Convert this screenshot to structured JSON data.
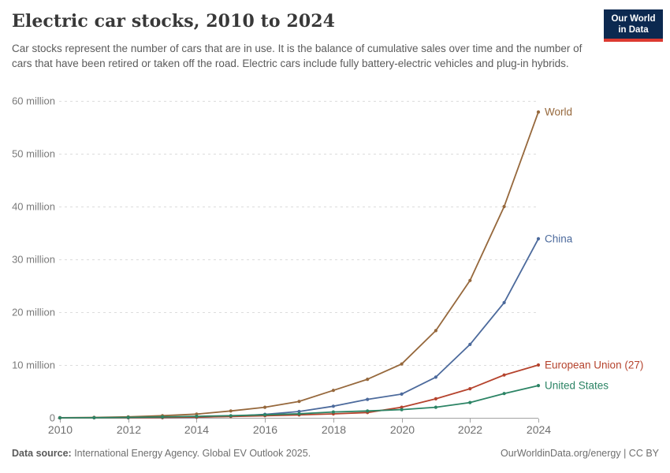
{
  "header": {
    "title": "Electric car stocks, 2010 to 2024",
    "subtitle": "Car stocks represent the number of cars that are in use. It is the balance of cumulative sales over time and the number of cars that have been retired or taken off the road. Electric cars include fully battery-electric vehicles and plug-in hybrids.",
    "logo": {
      "line1": "Our World",
      "line2": "in Data",
      "bg_color": "#0c2950",
      "accent_color": "#dc3a31"
    }
  },
  "chart_data": {
    "type": "line",
    "title": "Electric car stocks, 2010 to 2024",
    "xlabel": "",
    "ylabel": "",
    "unit": "million cars",
    "x": [
      2010,
      2011,
      2012,
      2013,
      2014,
      2015,
      2016,
      2017,
      2018,
      2019,
      2020,
      2021,
      2022,
      2023,
      2024
    ],
    "series": [
      {
        "name": "World",
        "color": "#96683c",
        "values": [
          0.02,
          0.07,
          0.18,
          0.4,
          0.7,
          1.3,
          2.0,
          3.1,
          5.2,
          7.3,
          10.2,
          16.5,
          26.0,
          40.0,
          57.9
        ]
      },
      {
        "name": "China",
        "color": "#4c6a9c",
        "values": [
          0.0,
          0.01,
          0.02,
          0.03,
          0.1,
          0.3,
          0.65,
          1.2,
          2.2,
          3.5,
          4.5,
          7.7,
          13.9,
          21.8,
          33.9
        ]
      },
      {
        "name": "European Union (27)",
        "color": "#b5432d",
        "values": [
          0.0,
          0.01,
          0.03,
          0.06,
          0.13,
          0.25,
          0.4,
          0.55,
          0.75,
          1.0,
          2.0,
          3.6,
          5.5,
          8.1,
          10.0
        ]
      },
      {
        "name": "United States",
        "color": "#2c8465",
        "values": [
          0.0,
          0.02,
          0.07,
          0.17,
          0.29,
          0.41,
          0.56,
          0.76,
          1.1,
          1.3,
          1.55,
          2.0,
          2.9,
          4.6,
          6.1
        ]
      }
    ],
    "ylim": [
      0,
      60
    ],
    "y_ticks": [
      {
        "value": 0,
        "label": "0"
      },
      {
        "value": 10,
        "label": "10 million"
      },
      {
        "value": 20,
        "label": "20 million"
      },
      {
        "value": 30,
        "label": "30 million"
      },
      {
        "value": 40,
        "label": "40 million"
      },
      {
        "value": 50,
        "label": "50 million"
      },
      {
        "value": 60,
        "label": "60 million"
      }
    ],
    "x_ticks": [
      2010,
      2012,
      2014,
      2016,
      2018,
      2020,
      2022,
      2024
    ],
    "grid": "dashed-horizontal",
    "legend_position": "right-end-labels"
  },
  "footer": {
    "source_label": "Data source:",
    "source_text": " International Energy Agency. Global EV Outlook 2025.",
    "right_text": "OurWorldinData.org/energy | CC BY"
  }
}
